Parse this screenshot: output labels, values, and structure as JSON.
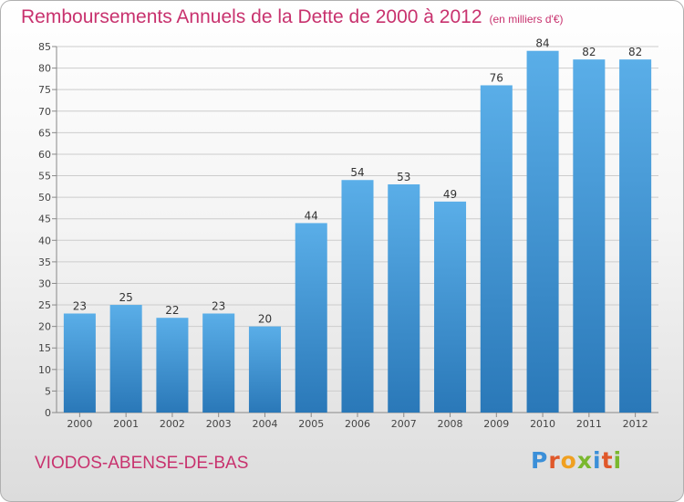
{
  "title": "Remboursements Annuels de la Dette de 2000 à 2012",
  "unit": "(en milliers d'€)",
  "place": "VIODOS-ABENSE-DE-BAS",
  "logo": {
    "text": "Proxiti",
    "letters": [
      "P",
      "r",
      "o",
      "x",
      "i",
      "t",
      "i"
    ]
  },
  "colors": {
    "title": "#c8326e",
    "bar_top": "#5aaee8",
    "bar_bottom": "#2a78b8",
    "grid": "#cccccc"
  },
  "chart_data": {
    "type": "bar",
    "categories": [
      "2000",
      "2001",
      "2002",
      "2003",
      "2004",
      "2005",
      "2006",
      "2007",
      "2008",
      "2009",
      "2010",
      "2011",
      "2012"
    ],
    "values": [
      23,
      25,
      22,
      23,
      20,
      44,
      54,
      53,
      49,
      76,
      84,
      82,
      82
    ],
    "ylim": [
      0,
      85
    ],
    "yticks": [
      0,
      5,
      10,
      15,
      20,
      25,
      30,
      35,
      40,
      45,
      50,
      55,
      60,
      65,
      70,
      75,
      80,
      85
    ],
    "grid": true,
    "data_labels": true
  }
}
